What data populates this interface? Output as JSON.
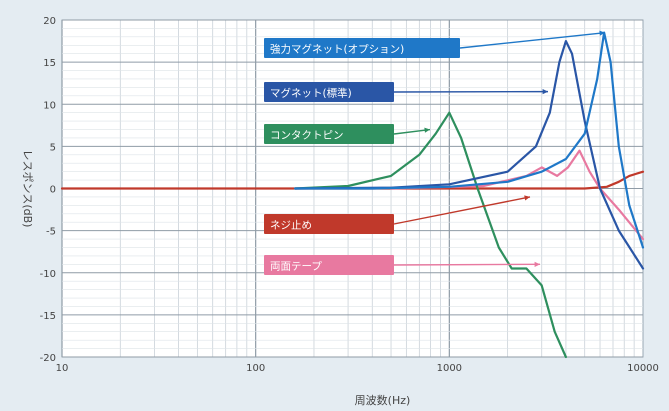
{
  "chart_data": {
    "type": "line",
    "x_scale": "log",
    "xlim": [
      10,
      10000
    ],
    "ylim": [
      -20,
      20
    ],
    "grid": true,
    "ylabel": "レスポンス(dB)",
    "xlabel": "周波数(Hz)",
    "x_ticks": [
      "10",
      "100",
      "1000",
      "10000"
    ],
    "y_ticks": [
      "20",
      "15",
      "10",
      "5",
      "0",
      "-5",
      "-10",
      "-15",
      "-20"
    ],
    "series": [
      {
        "name": "強力マグネット(オプション)",
        "color": "#1f78c8",
        "x": [
          160,
          400,
          1000,
          2000,
          3000,
          4000,
          5000,
          5800,
          6300,
          6800,
          7500,
          8500,
          10000
        ],
        "y": [
          0,
          0,
          0.2,
          0.8,
          2,
          3.5,
          6.5,
          13,
          18.5,
          15,
          5,
          -2,
          -7
        ]
      },
      {
        "name": "マグネット(標準)",
        "color": "#2a56a6",
        "x": [
          160,
          500,
          1000,
          2000,
          2800,
          3300,
          3700,
          4000,
          4300,
          5000,
          6000,
          7500,
          10000
        ],
        "y": [
          0,
          0.1,
          0.5,
          2,
          5,
          9,
          15,
          17.5,
          16,
          8,
          0,
          -5,
          -9.5
        ]
      },
      {
        "name": "コンタクトピン",
        "color": "#2e8f5e",
        "x": [
          160,
          300,
          500,
          700,
          850,
          1000,
          1150,
          1400,
          1800,
          2100,
          2500,
          3000,
          3500,
          4000
        ],
        "y": [
          0,
          0.3,
          1.5,
          4,
          6.5,
          9,
          6,
          0,
          -7,
          -9.5,
          -9.5,
          -11.5,
          -17,
          -20
        ]
      },
      {
        "name": "ネジ止め",
        "color": "#c0392b",
        "x": [
          10,
          1000,
          3000,
          5000,
          6500,
          7500,
          8500,
          10000
        ],
        "y": [
          0,
          0,
          0,
          0,
          0.2,
          0.8,
          1.5,
          2
        ]
      },
      {
        "name": "両面テープ",
        "color": "#e879a0",
        "x": [
          500,
          1500,
          2500,
          3000,
          3600,
          4100,
          4700,
          5300,
          6000,
          7500,
          10000
        ],
        "y": [
          0,
          0.3,
          1.5,
          2.5,
          1.5,
          2.5,
          4.5,
          2,
          0,
          -2.5,
          -6
        ]
      }
    ]
  }
}
